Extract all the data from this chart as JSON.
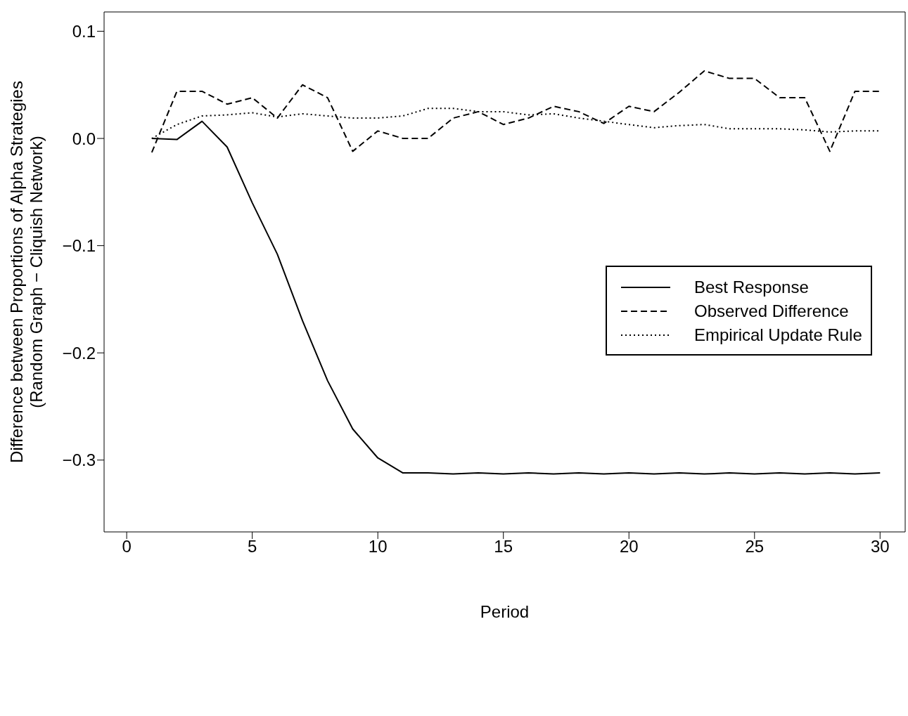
{
  "chart_data": {
    "type": "line",
    "xlabel": "Period",
    "ylabel": "Difference between Proportions of Alpha Strategies\n(Random Graph − Cliquish Network)",
    "x": [
      1,
      2,
      3,
      4,
      5,
      6,
      7,
      8,
      9,
      10,
      11,
      12,
      13,
      14,
      15,
      16,
      17,
      18,
      19,
      20,
      21,
      22,
      23,
      24,
      25,
      26,
      27,
      28,
      29,
      30
    ],
    "xlim": [
      -0.9,
      31
    ],
    "xticks": [
      0,
      5,
      10,
      15,
      20,
      25,
      30
    ],
    "ylim": [
      -0.367,
      0.118
    ],
    "yticks": [
      {
        "value": -0.3,
        "label": "−0.3"
      },
      {
        "value": -0.2,
        "label": "−0.2"
      },
      {
        "value": -0.1,
        "label": "−0.1"
      },
      {
        "value": 0,
        "label": "0.0"
      },
      0.1
    ],
    "grid": false,
    "legend": "right",
    "marker": "none",
    "series": [
      {
        "name": "Best Response",
        "color": "#000000",
        "line_style": "solid",
        "values": [
          0.0,
          -0.001,
          0.016,
          -0.008,
          -0.06,
          -0.108,
          -0.17,
          -0.226,
          -0.271,
          -0.298,
          -0.312,
          -0.312,
          -0.313,
          -0.312,
          -0.313,
          -0.312,
          -0.313,
          -0.312,
          -0.313,
          -0.312,
          -0.313,
          -0.312,
          -0.313,
          -0.312,
          -0.313,
          -0.312,
          -0.313,
          -0.312,
          -0.313,
          -0.312
        ]
      },
      {
        "name": "Observed Difference",
        "color": "#000000",
        "line_style": "dashed",
        "values": [
          -0.013,
          0.044,
          0.044,
          0.032,
          0.038,
          0.019,
          0.05,
          0.038,
          -0.012,
          0.007,
          0.0,
          0.0,
          0.019,
          0.025,
          0.013,
          0.019,
          0.03,
          0.025,
          0.014,
          0.03,
          0.025,
          0.043,
          0.063,
          0.056,
          0.056,
          0.038,
          0.038,
          -0.012,
          0.044,
          0.044
        ]
      },
      {
        "name": "Empirical Update Rule",
        "color": "#000000",
        "line_style": "dotted",
        "values": [
          0.0,
          0.013,
          0.021,
          0.022,
          0.024,
          0.02,
          0.023,
          0.021,
          0.019,
          0.019,
          0.021,
          0.028,
          0.028,
          0.025,
          0.025,
          0.022,
          0.023,
          0.019,
          0.016,
          0.013,
          0.01,
          0.012,
          0.013,
          0.009,
          0.009,
          0.009,
          0.008,
          0.006,
          0.007,
          0.007
        ]
      }
    ]
  }
}
